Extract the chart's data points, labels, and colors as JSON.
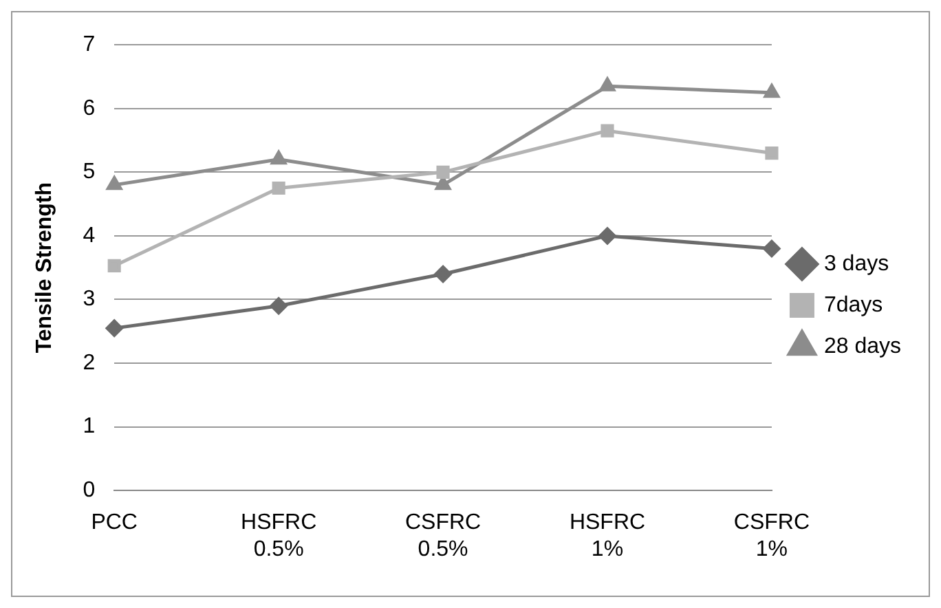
{
  "chart_data": {
    "type": "line",
    "ylabel": "Tensile Strength",
    "categories": [
      "PCC",
      "HSFRC 0.5%",
      "CSFRC 0.5%",
      "HSFRC 1%",
      "CSFRC 1%"
    ],
    "series": [
      {
        "name": "3 days",
        "color": "#6b6b6b",
        "marker": "diamond",
        "values": [
          2.55,
          2.9,
          3.4,
          4.0,
          3.8
        ]
      },
      {
        "name": "7days",
        "color": "#b3b3b3",
        "marker": "square",
        "values": [
          3.53,
          4.75,
          5.0,
          5.65,
          5.3
        ]
      },
      {
        "name": "28 days",
        "color": "#8c8c8c",
        "marker": "triangle",
        "values": [
          4.8,
          5.2,
          4.8,
          6.35,
          6.25
        ]
      }
    ],
    "ylim": [
      0,
      7
    ],
    "yticks": [
      0,
      1,
      2,
      3,
      4,
      5,
      6,
      7
    ],
    "grid": "y",
    "legend": "right",
    "line_style": "solid"
  }
}
